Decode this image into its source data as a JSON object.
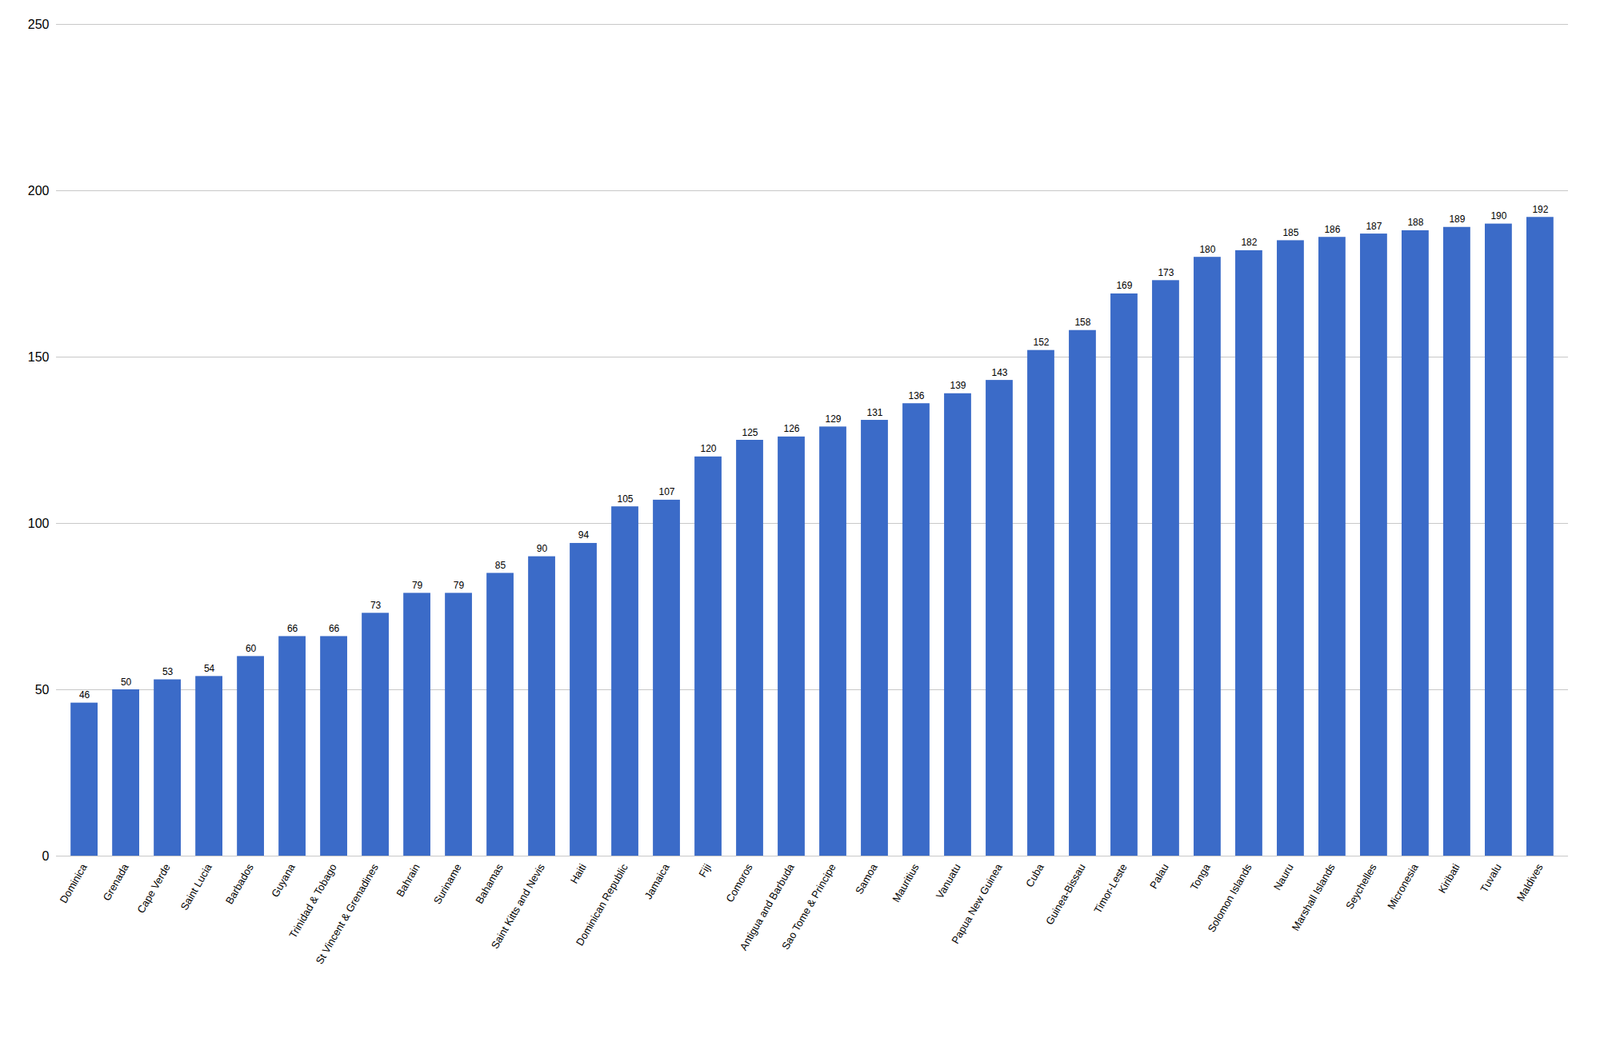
{
  "chart_data": {
    "type": "bar",
    "categories": [
      "Dominica",
      "Grenada",
      "Cape Verde",
      "Saint Lucia",
      "Barbados",
      "Guyana",
      "Trinidad & Tobago",
      "St Vincent & Grenadines",
      "Bahrain",
      "Suriname",
      "Bahamas",
      "Saint Kitts and Nevis",
      "Haiti",
      "Dominican Republic",
      "Jamaica",
      "Fiji",
      "Comoros",
      "Antigua and Barbuda",
      "Sao Tome & Principe",
      "Samoa",
      "Mauritius",
      "Vanuatu",
      "Papua New Guinea",
      "Cuba",
      "Guinea-Bissau",
      "Timor-Leste",
      "Palau",
      "Tonga",
      "Solomon Islands",
      "Nauru",
      "Marshall Islands",
      "Seychelles",
      "Micronesia",
      "Kiribati",
      "Tuvalu",
      "Maldives"
    ],
    "values": [
      46,
      50,
      53,
      54,
      60,
      66,
      66,
      73,
      79,
      79,
      85,
      90,
      94,
      105,
      107,
      120,
      125,
      126,
      129,
      131,
      136,
      139,
      143,
      152,
      158,
      169,
      173,
      180,
      182,
      185,
      186,
      187,
      188,
      189,
      190,
      192
    ],
    "color": "#3b6bc8",
    "ylim": [
      0,
      250
    ],
    "yticks": [
      0,
      50,
      100,
      150,
      200,
      250
    ],
    "grid": true,
    "data_labels": true
  }
}
